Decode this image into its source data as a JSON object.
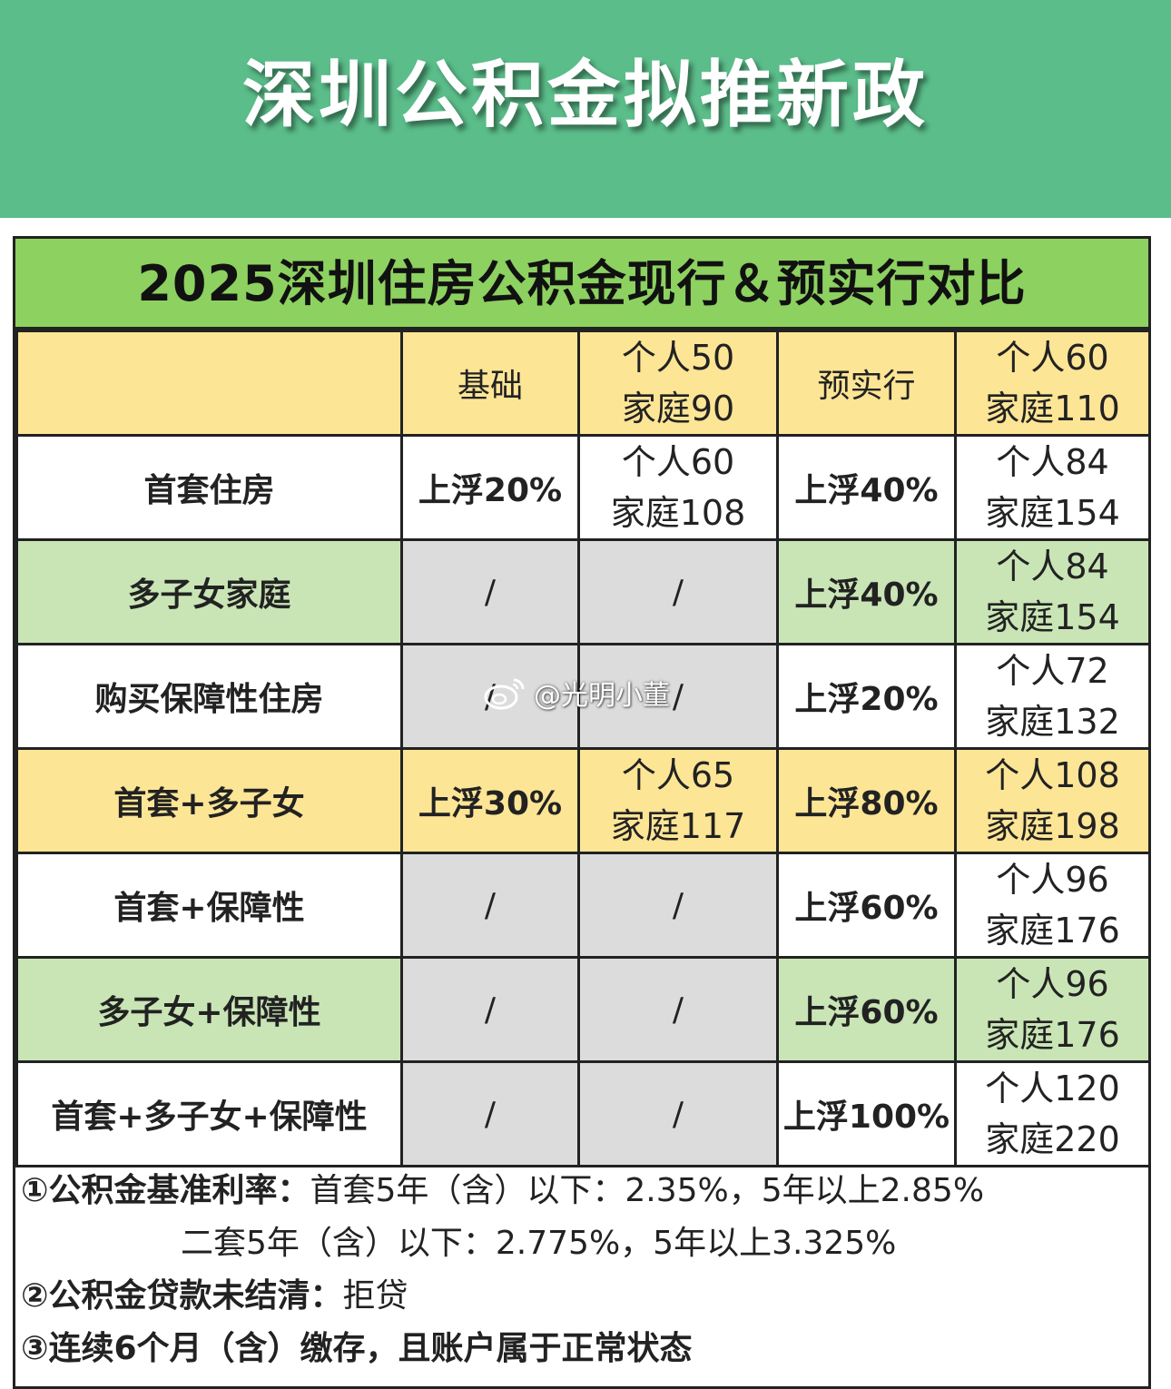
{
  "banner": {
    "title": "深圳公积金拟推新政"
  },
  "card": {
    "title": "2025深圳住房公积金现行＆预实行对比"
  },
  "table": {
    "header": {
      "col1": "基础",
      "col2": [
        "个人50",
        "家庭90"
      ],
      "col3": "预实行",
      "col4": [
        "个人60",
        "家庭110"
      ]
    },
    "rows": [
      {
        "label": "首套住房",
        "cur": "上浮20%",
        "cur_amt": [
          "个人60",
          "家庭108"
        ],
        "new": "上浮40%",
        "new_amt": [
          "个人84",
          "家庭154"
        ]
      },
      {
        "label": "多子女家庭",
        "cur": "/",
        "cur_amt": "/",
        "new": "上浮40%",
        "new_amt": [
          "个人84",
          "家庭154"
        ]
      },
      {
        "label": "购买保障性住房",
        "cur": "/",
        "cur_amt": "/",
        "new": "上浮20%",
        "new_amt": [
          "个人72",
          "家庭132"
        ]
      },
      {
        "label": "首套+多子女",
        "cur": "上浮30%",
        "cur_amt": [
          "个人65",
          "家庭117"
        ],
        "new": "上浮80%",
        "new_amt": [
          "个人108",
          "家庭198"
        ]
      },
      {
        "label": "首套+保障性",
        "cur": "/",
        "cur_amt": "/",
        "new": "上浮60%",
        "new_amt": [
          "个人96",
          "家庭176"
        ]
      },
      {
        "label": "多子女+保障性",
        "cur": "/",
        "cur_amt": "/",
        "new": "上浮60%",
        "new_amt": [
          "个人96",
          "家庭176"
        ]
      },
      {
        "label": "首套+多子女+保障性",
        "cur": "/",
        "cur_amt": "/",
        "new": "上浮100%",
        "new_amt": [
          "个人120",
          "家庭220"
        ]
      }
    ]
  },
  "notes": {
    "n1_label": "①公积金基准利率：",
    "n1_text": "首套5年（含）以下：2.35%，5年以上2.85%",
    "n1b_text": "二套5年（含）以下：2.775%，5年以上3.325%",
    "n2_label": "②公积金贷款未结清：",
    "n2_text": "拒贷",
    "n3_text": "③连续6个月（含）缴存，且账户属于正常状态"
  },
  "watermark": {
    "text": "@光明小董",
    "icon": "weibo-icon"
  }
}
